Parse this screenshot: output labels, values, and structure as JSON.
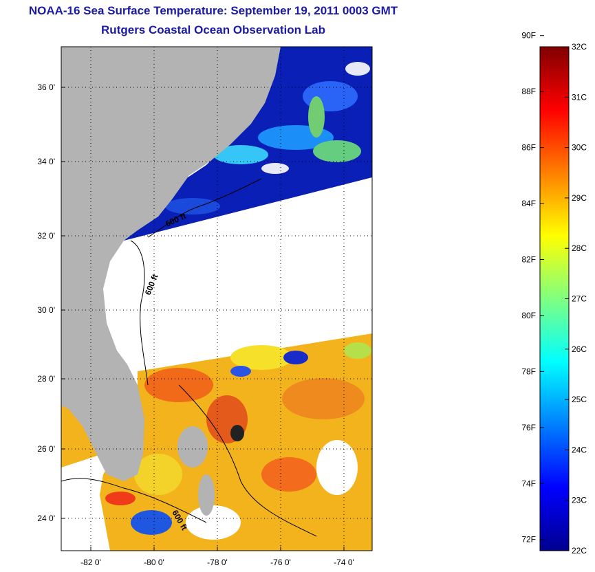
{
  "title_line1": "NOAA-16 Sea Surface Temperature:  September 19, 2011 0003 GMT",
  "title_line2": "Rutgers Coastal Ocean Observation Lab",
  "map": {
    "lon_ticks": [
      "-82 0'",
      "-80 0'",
      "-78 0'",
      "-76 0'",
      "-74 0'"
    ],
    "lat_ticks": [
      "36 0'",
      "34 0'",
      "32 0'",
      "30 0'",
      "28 0'",
      "26 0'",
      "24 0'"
    ],
    "contour_labels": [
      "600 ft",
      "600 ft",
      "600 ft"
    ],
    "land_color": "#b3b3b3",
    "nodata_color": "#ffffff"
  },
  "colorbar": {
    "fahrenheit_labels": [
      "90F",
      "88F",
      "86F",
      "84F",
      "82F",
      "80F",
      "78F",
      "76F",
      "74F",
      "72F"
    ],
    "celsius_labels": [
      "32C",
      "31C",
      "30C",
      "29C",
      "28C",
      "27C",
      "26C",
      "25C",
      "24C",
      "23C",
      "22C"
    ],
    "range_c": [
      22,
      32
    ],
    "colormap": "jet"
  }
}
